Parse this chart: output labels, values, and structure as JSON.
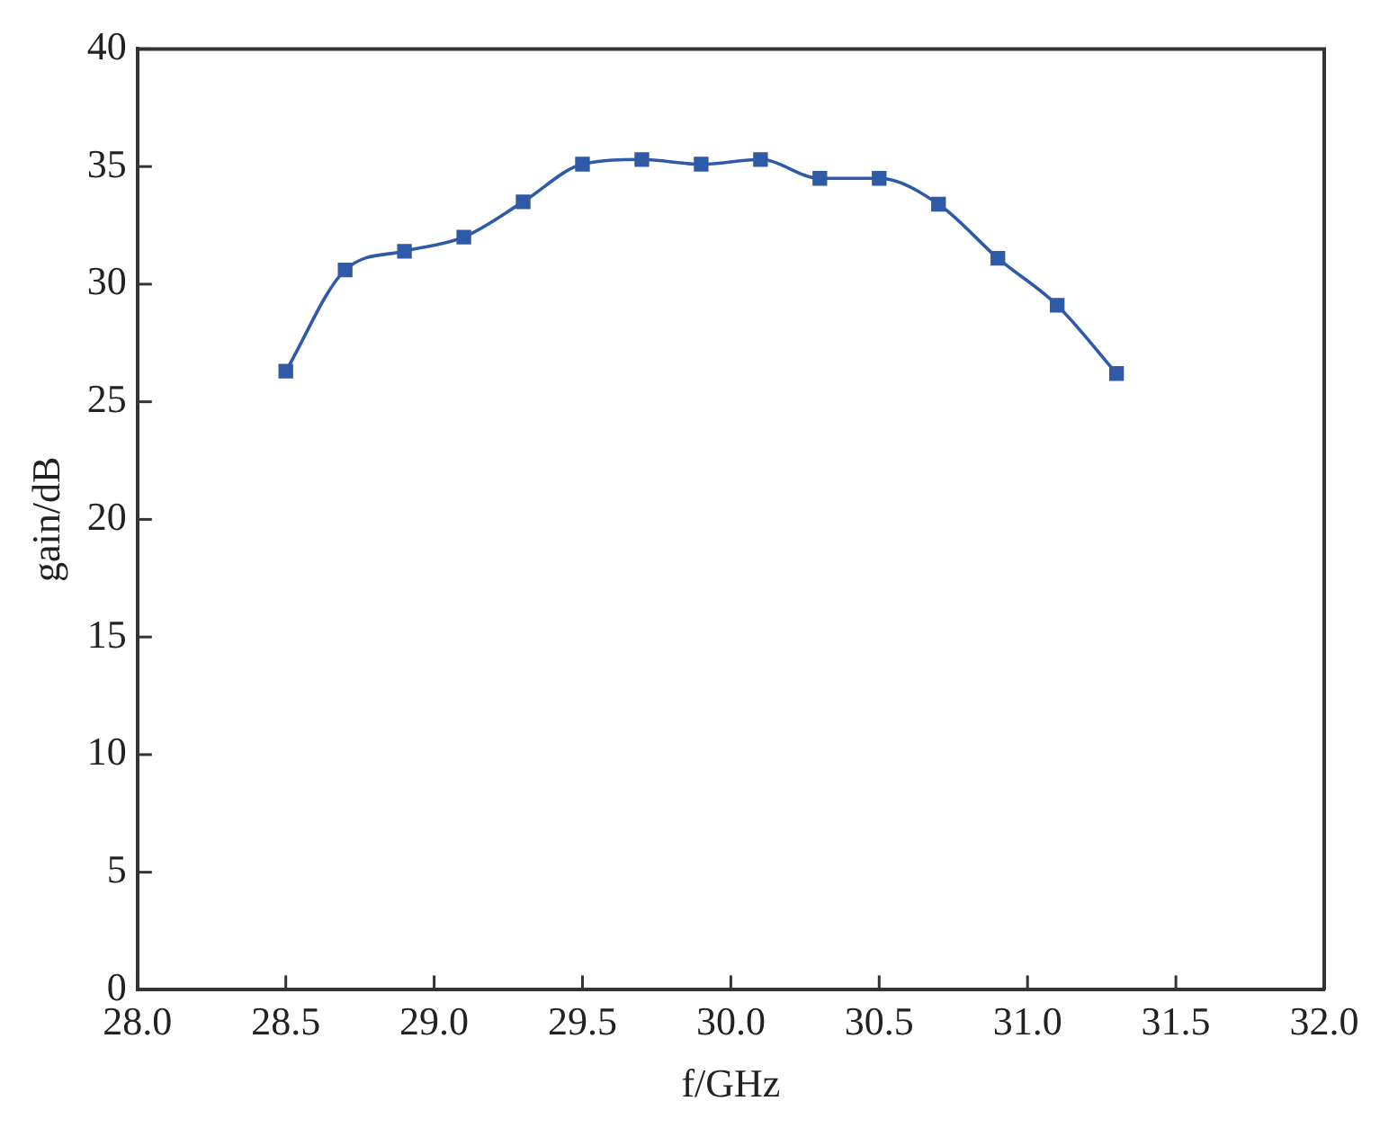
{
  "chart_data": {
    "type": "line",
    "xlabel": "f/GHz",
    "ylabel": "gain/dB",
    "x": [
      28.5,
      28.7,
      28.9,
      29.1,
      29.3,
      29.5,
      29.7,
      29.9,
      30.1,
      30.3,
      30.5,
      30.7,
      30.9,
      31.1,
      31.3
    ],
    "series": [
      {
        "color": "#2e5aa8",
        "values": [
          26.3,
          30.6,
          31.4,
          32.0,
          33.5,
          35.1,
          35.3,
          35.1,
          35.3,
          34.5,
          34.5,
          33.4,
          31.1,
          29.1,
          26.2
        ]
      }
    ],
    "xlim": [
      28,
      32
    ],
    "ylim": [
      0,
      40
    ],
    "xticks": [
      {
        "value": 28,
        "label": "28.0"
      },
      28.5,
      {
        "value": 29,
        "label": "29.0"
      },
      29.5,
      {
        "value": 30,
        "label": "30.0"
      },
      30.5,
      {
        "value": 31,
        "label": "31.0"
      },
      31.5,
      {
        "value": 32,
        "label": "32.0"
      }
    ],
    "yticks": [
      0,
      5,
      10,
      15,
      20,
      25,
      30,
      35,
      40
    ],
    "marker": "square",
    "grid": false,
    "legend": false
  }
}
